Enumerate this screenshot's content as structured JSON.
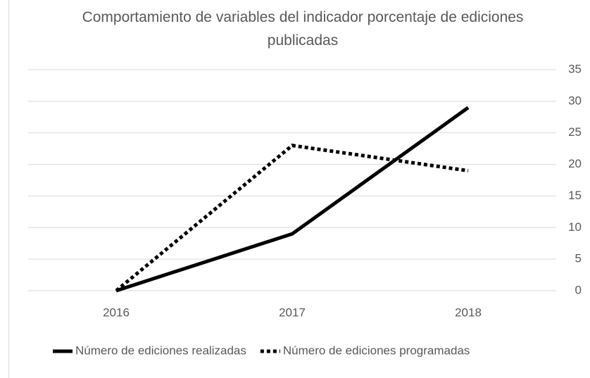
{
  "chart_data": {
    "type": "line",
    "title": "Comportamiento de variables del indicador porcentaje de ediciones publicadas",
    "categories": [
      "2016",
      "2017",
      "2018"
    ],
    "series": [
      {
        "name": "Número de ediciones realizadas",
        "color": "#000000",
        "line_style": "solid",
        "values": [
          0,
          9,
          29
        ]
      },
      {
        "name": "Número de ediciones programadas",
        "color": "#000000",
        "line_style": "dotted",
        "values": [
          0,
          23,
          19
        ]
      }
    ],
    "ylim": [
      0,
      35
    ],
    "yticks": [
      0,
      5,
      10,
      15,
      20,
      25,
      30,
      35
    ],
    "y_axis_side": "right",
    "grid": true,
    "legend": "bottom"
  }
}
